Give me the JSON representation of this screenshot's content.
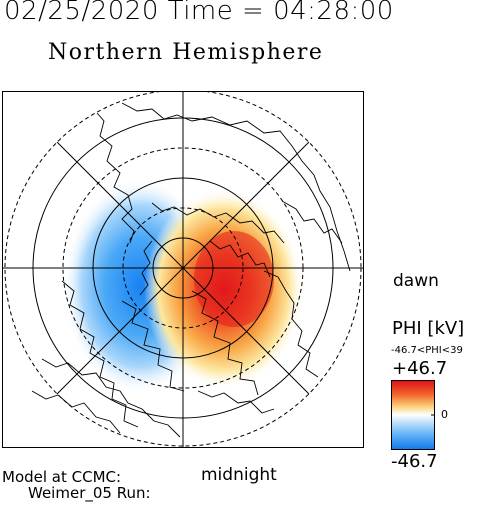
{
  "header": {
    "datetime": "02/25/2020 Time = 04:28:00",
    "title": "Northern Hemisphere"
  },
  "map": {
    "orientation": {
      "dawn": "dawn",
      "midnight": "midnight"
    },
    "positive_color": "#e8231e",
    "negative_color": "#1e8ff0"
  },
  "footer": {
    "model_line": "Model at CCMC:",
    "run_line": "Weimer_05 Run:"
  },
  "colorbar": {
    "title": "PHI [kV]",
    "range_text": "-46.7<PHI<39",
    "max_label": "+46.7",
    "zero_label": "0",
    "min_label": "-46.7"
  }
}
